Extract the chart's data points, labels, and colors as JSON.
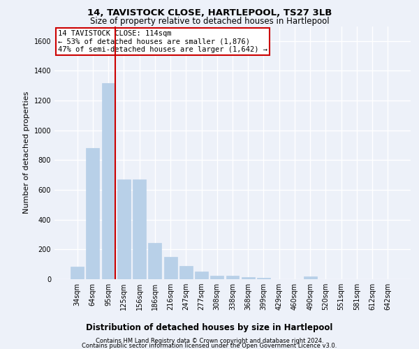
{
  "title": "14, TAVISTOCK CLOSE, HARTLEPOOL, TS27 3LB",
  "subtitle": "Size of property relative to detached houses in Hartlepool",
  "xlabel": "Distribution of detached houses by size in Hartlepool",
  "ylabel": "Number of detached properties",
  "categories": [
    "34sqm",
    "64sqm",
    "95sqm",
    "125sqm",
    "156sqm",
    "186sqm",
    "216sqm",
    "247sqm",
    "277sqm",
    "308sqm",
    "338sqm",
    "368sqm",
    "399sqm",
    "429sqm",
    "460sqm",
    "490sqm",
    "520sqm",
    "551sqm",
    "581sqm",
    "612sqm",
    "642sqm"
  ],
  "values": [
    85,
    880,
    1320,
    670,
    670,
    245,
    148,
    88,
    52,
    25,
    22,
    14,
    10,
    0,
    0,
    18,
    0,
    0,
    0,
    0,
    0
  ],
  "bar_color": "#b8d0e8",
  "vline_bar_index": 2,
  "vline_color": "#cc0000",
  "annotation_text": "14 TAVISTOCK CLOSE: 114sqm\n← 53% of detached houses are smaller (1,876)\n47% of semi-detached houses are larger (1,642) →",
  "annotation_box_color": "#ffffff",
  "annotation_border_color": "#cc0000",
  "ylim": [
    0,
    1700
  ],
  "yticks": [
    0,
    200,
    400,
    600,
    800,
    1000,
    1200,
    1400,
    1600
  ],
  "background_color": "#edf1f9",
  "grid_color": "#ffffff",
  "title_fontsize": 9.5,
  "subtitle_fontsize": 8.5,
  "ylabel_fontsize": 8,
  "xlabel_fontsize": 8.5,
  "tick_fontsize": 7,
  "annotation_fontsize": 7.5,
  "footer_fontsize": 6,
  "footer_line1": "Contains HM Land Registry data © Crown copyright and database right 2024.",
  "footer_line2": "Contains public sector information licensed under the Open Government Licence v3.0."
}
